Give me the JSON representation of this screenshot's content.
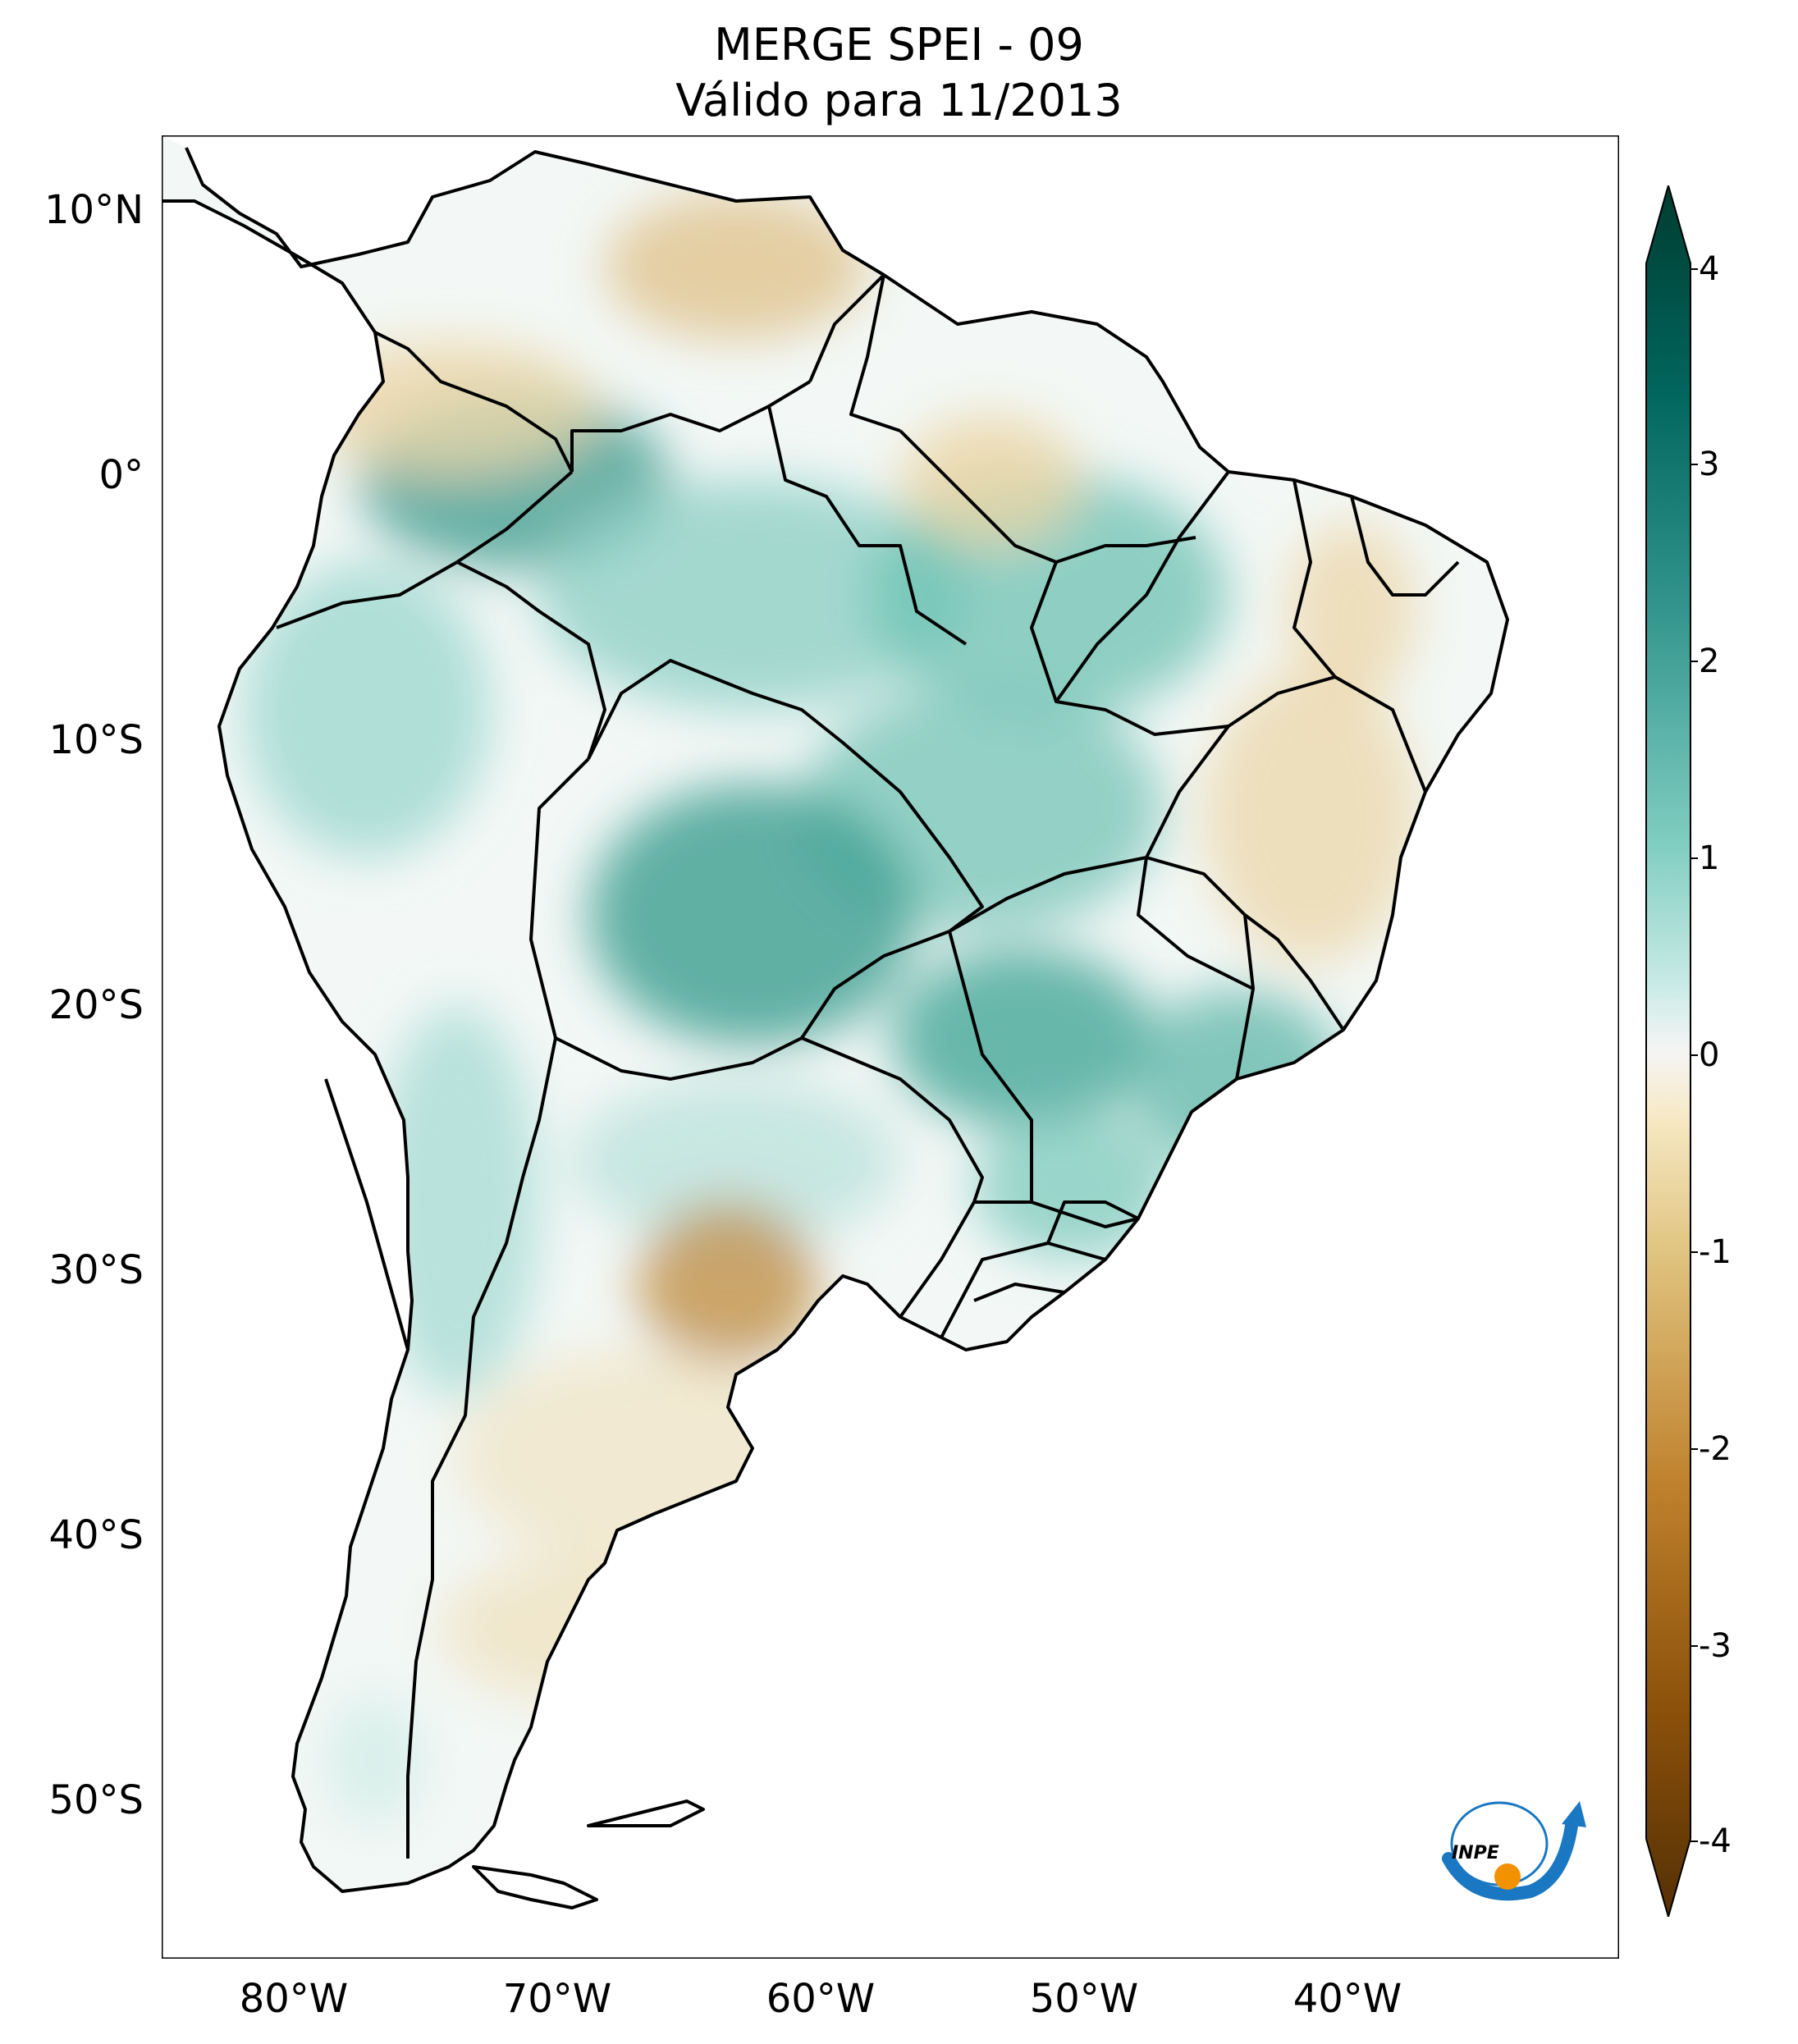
{
  "title": {
    "line1": "MERGE   SPEI - 09",
    "line2": "Válido para 11/2013"
  },
  "map": {
    "lat_ticks": [
      "10°N",
      "0°",
      "10°S",
      "20°S",
      "30°S",
      "40°S",
      "50°S"
    ],
    "lon_ticks": [
      "80°W",
      "70°W",
      "60°W",
      "50°W",
      "40°W"
    ],
    "extent": {
      "lon_min": -85,
      "lon_max": -29.5,
      "lat_min": -56,
      "lat_max": 13
    }
  },
  "colorbar": {
    "ticks": [
      "4",
      "3",
      "2",
      "1",
      "0",
      "-1",
      "-2",
      "-3",
      "-4"
    ],
    "range": [
      -4,
      4
    ],
    "colors": {
      "dry_extreme": "#543005",
      "dry": "#bf812d",
      "dry_light": "#f6e8c3",
      "neutral": "#f5f5f5",
      "wet_light": "#c7eae5",
      "wet": "#35978f",
      "wet_extreme": "#003c30"
    }
  },
  "logo": {
    "text": "INPE"
  }
}
